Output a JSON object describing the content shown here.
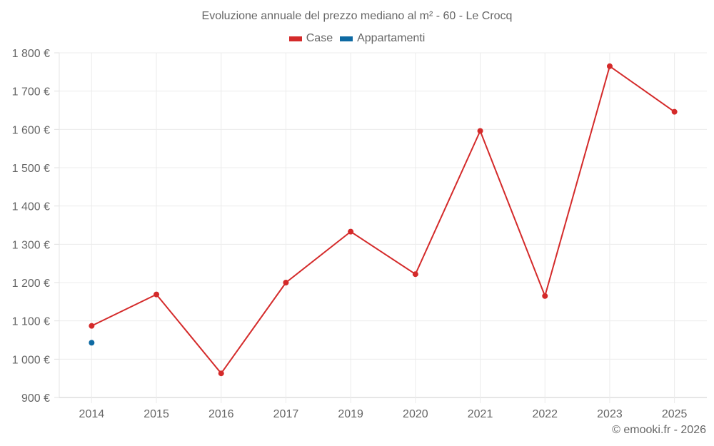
{
  "chart_data": {
    "type": "line",
    "title": "Evoluzione annuale del prezzo mediano al m² - 60 - Le Crocq",
    "xlabel": "",
    "ylabel": "",
    "categories": [
      "2014",
      "2015",
      "2016",
      "2017",
      "2019",
      "2020",
      "2021",
      "2022",
      "2023",
      "2025"
    ],
    "series": [
      {
        "name": "Case",
        "color": "#d42a2a",
        "values": [
          1087,
          1169,
          963,
          1200,
          1333,
          1222,
          1596,
          1165,
          1765,
          1646
        ]
      },
      {
        "name": "Appartamenti",
        "color": "#0e6aa3",
        "values": [
          1043,
          null,
          null,
          null,
          null,
          null,
          null,
          null,
          null,
          null
        ]
      }
    ],
    "ylim": [
      900,
      1800
    ],
    "yticks": [
      900,
      1000,
      1100,
      1200,
      1300,
      1400,
      1500,
      1600,
      1700,
      1800
    ],
    "ytick_labels": [
      "900 €",
      "1 000 €",
      "1 100 €",
      "1 200 €",
      "1 300 €",
      "1 400 €",
      "1 500 €",
      "1 600 €",
      "1 700 €",
      "1 800 €"
    ],
    "grid": true,
    "legend_position": "top"
  },
  "legend": [
    {
      "label": "Case",
      "color": "#d42a2a"
    },
    {
      "label": "Appartamenti",
      "color": "#0e6aa3"
    }
  ],
  "credit": "© emooki.fr - 2026"
}
